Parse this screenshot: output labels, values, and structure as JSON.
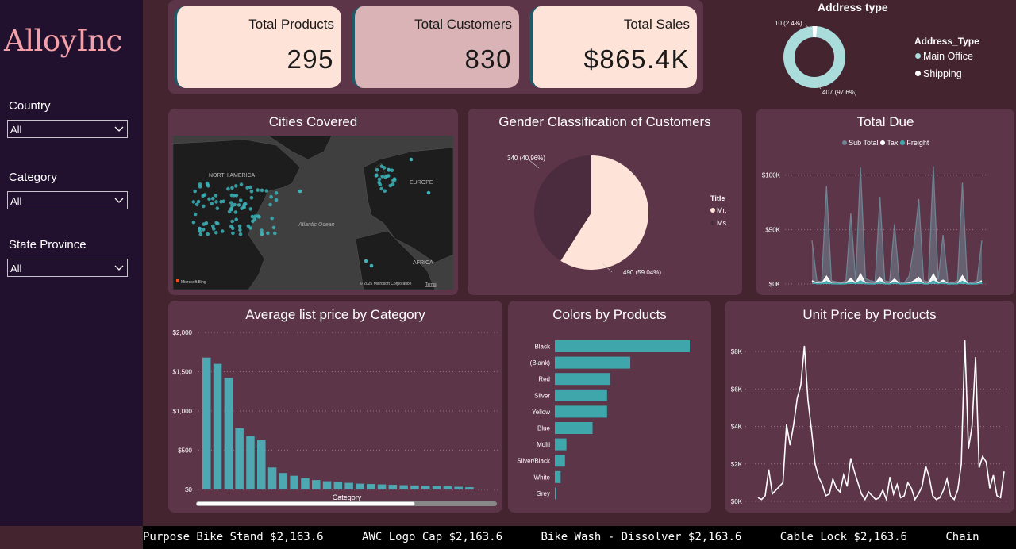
{
  "logo": "AlloyInc",
  "filters": [
    {
      "label": "Country",
      "value": "All"
    },
    {
      "label": "Category",
      "value": "All"
    },
    {
      "label": "State Province",
      "value": "All"
    }
  ],
  "kpis": [
    {
      "label": "Total Products",
      "value": "295",
      "bg": "#fde3d8"
    },
    {
      "label": "Total Customers",
      "value": "830",
      "bg": "#d9b3b5"
    },
    {
      "label": "Total Sales",
      "value": "$865.4K",
      "bg": "#fde3d8"
    }
  ],
  "address": {
    "title": "Address type",
    "legend_title": "Address_Type",
    "legend": [
      "Main Office",
      "Shipping"
    ],
    "label_small": "10 (2.4%)",
    "label_large": "407 (97.6%)"
  },
  "cities": {
    "title": "Cities Covered",
    "labels": {
      "na": "NORTH AMERICA",
      "eu": "EUROPE",
      "af": "AFRICA",
      "ocean": "Atlantic Ocean"
    },
    "credit": "© 2025 Microsoft Corporation",
    "terms": "Terms",
    "bing": "Microsoft Bing"
  },
  "gender": {
    "title": "Gender Classification of Customers",
    "legend_title": "Title",
    "legend": [
      "Mr.",
      "Ms."
    ],
    "label_mr": "490 (59.04%)",
    "label_ms": "340 (40.96%)"
  },
  "total_due": {
    "title": "Total Due",
    "legend": [
      "Sub Total",
      "Tax",
      "Freight"
    ],
    "yticks": [
      "$100K",
      "$50K",
      "$0K"
    ]
  },
  "avg_price": {
    "title": "Average list price by Category",
    "xlabel": "Category",
    "yticks": [
      "$2,000",
      "$1,500",
      "$1,000",
      "$500",
      "$0"
    ]
  },
  "colors": {
    "title": "Colors by Products"
  },
  "unit_price": {
    "title": "Unit Price by Products",
    "yticks": [
      "$8K",
      "$6K",
      "$4K",
      "$2K",
      "$0K"
    ]
  },
  "ticker": [
    "Purpose Bike Stand $2,163.6",
    "AWC Logo Cap $2,163.6",
    "Bike Wash - Dissolver $2,163.6",
    "Cable Lock $2,163.6",
    "Chain"
  ],
  "chart_data": [
    {
      "type": "pie",
      "title": "Address type",
      "categories": [
        "Main Office",
        "Shipping"
      ],
      "values": [
        407,
        10
      ],
      "colors": [
        "#a9dcdb",
        "#ffffff"
      ]
    },
    {
      "type": "pie",
      "title": "Gender Classification of Customers",
      "categories": [
        "Mr.",
        "Ms."
      ],
      "values": [
        490,
        340
      ],
      "colors": [
        "#fde3d8",
        "#4a2c3e"
      ]
    },
    {
      "type": "bar",
      "title": "Average list price by Category",
      "xlabel": "Category",
      "ylim": [
        0,
        2000
      ],
      "values": [
        1680,
        1600,
        1420,
        780,
        680,
        630,
        280,
        210,
        175,
        145,
        120,
        105,
        95,
        85,
        75,
        70,
        65,
        60,
        55,
        52,
        48,
        45,
        40,
        35,
        30
      ],
      "color": "#4ea8b2"
    },
    {
      "type": "bar",
      "orientation": "horizontal",
      "title": "Colors by Products",
      "categories": [
        "Black",
        "(Blank)",
        "Red",
        "Silver",
        "Yellow",
        "Blue",
        "Multi",
        "Silver/Black",
        "White",
        "Grey"
      ],
      "values": [
        93,
        52,
        38,
        36,
        36,
        26,
        8,
        7,
        4,
        1
      ],
      "color": "#3fa6ac"
    },
    {
      "type": "area",
      "title": "Total Due",
      "ylim": [
        0,
        110000
      ],
      "series": [
        {
          "name": "Sub Total",
          "color": "#6f8392",
          "values": [
            40000,
            3000,
            2000,
            90000,
            3000,
            2000,
            1000,
            3000,
            65000,
            3000,
            107000,
            5000,
            3000,
            2000,
            80000,
            3000,
            2000,
            55000,
            2000,
            1000,
            7000,
            35000,
            78000,
            3000,
            2000,
            108000,
            4000,
            45000,
            2000,
            1000,
            3000,
            93000,
            2000,
            1000,
            3000,
            40000
          ]
        },
        {
          "name": "Tax",
          "color": "#ffffff",
          "values": [
            3000,
            800,
            500,
            7000,
            500,
            400,
            300,
            500,
            5000,
            500,
            9000,
            600,
            400,
            300,
            6000,
            400,
            300,
            4500,
            300,
            200,
            700,
            2800,
            6000,
            400,
            300,
            9000,
            500,
            3500,
            300,
            200,
            400,
            7500,
            300,
            200,
            400,
            3000
          ]
        },
        {
          "name": "Freight",
          "color": "#3fa6ac",
          "values": [
            1000,
            300,
            200,
            2200,
            200,
            150,
            100,
            200,
            1600,
            200,
            2800,
            200,
            150,
            100,
            2000,
            150,
            100,
            1400,
            100,
            80,
            250,
            900,
            1900,
            150,
            100,
            2800,
            200,
            1100,
            100,
            80,
            150,
            2300,
            100,
            80,
            150,
            1000
          ]
        }
      ]
    },
    {
      "type": "line",
      "title": "Unit Price by Products",
      "ylim": [
        0,
        9000
      ],
      "color": "#ffffff",
      "values": [
        200,
        100,
        300,
        1700,
        400,
        600,
        800,
        1000,
        4100,
        3000,
        4100,
        5500,
        6200,
        8300,
        5400,
        3800,
        2000,
        1300,
        900,
        300,
        400,
        1200,
        700,
        500,
        1400,
        800,
        2300,
        1600,
        1000,
        400,
        100,
        500,
        300,
        100,
        200,
        600,
        100,
        1300,
        400,
        900,
        200,
        300,
        1000,
        700,
        100,
        400,
        800,
        1900,
        1300,
        300,
        100,
        200,
        600,
        1200,
        300,
        100,
        600,
        2000,
        8600,
        2800,
        4000,
        7700,
        1800,
        2400,
        2100,
        700,
        1400,
        300,
        200,
        1600
      ]
    }
  ]
}
